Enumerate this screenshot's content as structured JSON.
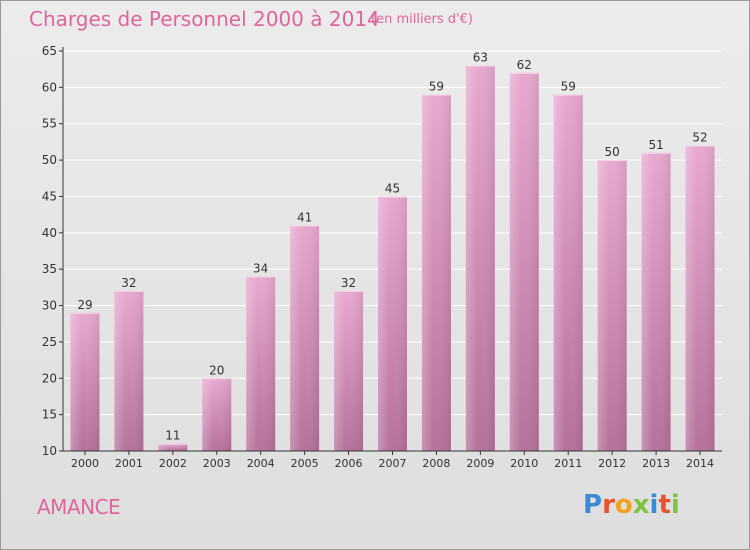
{
  "header": {
    "title": "Charges de Personnel 2000 à 2014",
    "subtitle": "(en milliers d'€)"
  },
  "footer": {
    "place": "AMANCE",
    "logo_text": "Proxiti",
    "logo_colors": [
      "#3a8ad6",
      "#e8532b",
      "#f2a21f",
      "#7fc241",
      "#3a8ad6",
      "#e8532b",
      "#7fc241"
    ]
  },
  "colors": {
    "bar_top": "#e8a8cf",
    "bar_bottom": "#b5719a",
    "axis": "#333333",
    "grid": "#ffffff",
    "accent": "#e06699"
  },
  "chart_data": {
    "type": "bar",
    "categories": [
      "2000",
      "2001",
      "2002",
      "2003",
      "2004",
      "2005",
      "2006",
      "2007",
      "2008",
      "2009",
      "2010",
      "2011",
      "2012",
      "2013",
      "2014"
    ],
    "values": [
      29,
      32,
      11,
      20,
      34,
      41,
      32,
      45,
      59,
      63,
      62,
      59,
      50,
      51,
      52
    ],
    "ylim": [
      10,
      65
    ],
    "yticks": [
      10,
      15,
      20,
      25,
      30,
      35,
      40,
      45,
      50,
      55,
      60,
      65
    ],
    "grid": true,
    "data_labels": true
  }
}
